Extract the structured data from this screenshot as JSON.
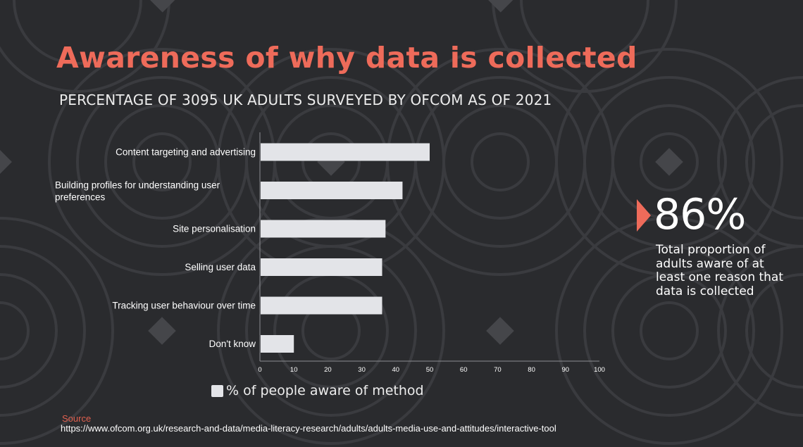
{
  "header": {
    "title": "Awareness of why data is collected",
    "subtitle": "PERCENTAGE OF 3095 UK ADULTS SURVEYED BY OFCOM AS OF 2021"
  },
  "colors": {
    "title": "#ee6b5a",
    "accent": "#ee6b5a",
    "bar": "#e3e4e8",
    "background": "#2a2b2e",
    "text": "#ffffff"
  },
  "chart_data": {
    "type": "bar",
    "orientation": "horizontal",
    "title": "",
    "xlabel": "",
    "ylabel": "",
    "xlim": [
      0,
      100
    ],
    "ticks": [
      0,
      10,
      20,
      30,
      40,
      50,
      60,
      70,
      80,
      90,
      100
    ],
    "grid": false,
    "legend_position": "bottom",
    "categories": [
      "Content targeting and advertising",
      "Building profiles for understanding user preferences",
      "Site personalisation",
      "Selling user data",
      "Tracking user behaviour over time",
      "Don't know"
    ],
    "series": [
      {
        "name": "% of people aware of method",
        "values": [
          50,
          42,
          37,
          36,
          36,
          10
        ]
      }
    ]
  },
  "stat": {
    "value": "86%",
    "description": "Total proportion of adults aware of at least one reason that data is collected",
    "icon": "arrow-right-icon"
  },
  "source": {
    "label": "Source",
    "url": "https://www.ofcom.org.uk/research-and-data/media-literacy-research/adults/adults-media-use-and-attitudes/interactive-tool"
  }
}
